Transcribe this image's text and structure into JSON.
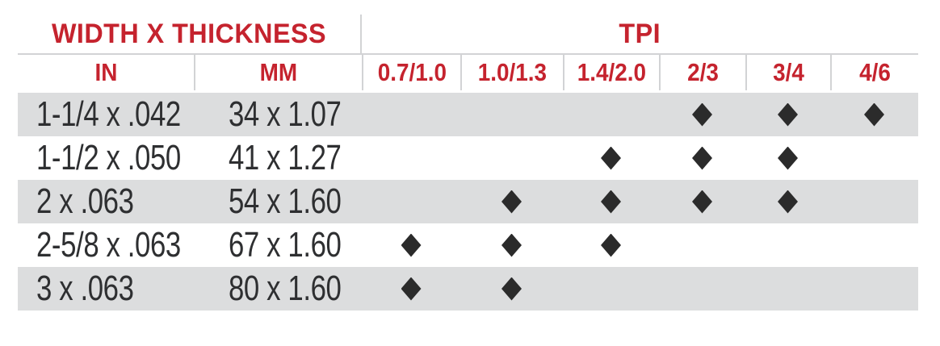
{
  "colors": {
    "header_red": "#C5232E",
    "row_stripe": "#DCDDDE",
    "grid_line": "#D2D3D5",
    "marker": "#2B2B2B",
    "data_text": "#2E2F31",
    "background": "#FFFFFF"
  },
  "chart_data": {
    "type": "table",
    "title": "",
    "marker_glyph": "♦",
    "column_groups": [
      {
        "label": "WIDTH X THICKNESS",
        "span": [
          "IN",
          "MM"
        ]
      },
      {
        "label": "TPI",
        "span": [
          "0.7/1.0",
          "1.0/1.3",
          "1.4/2.0",
          "2/3",
          "3/4",
          "4/6"
        ]
      }
    ],
    "columns": [
      "IN",
      "MM",
      "0.7/1.0",
      "1.0/1.3",
      "1.4/2.0",
      "2/3",
      "3/4",
      "4/6"
    ],
    "rows": [
      [
        "1-1/4 x .042",
        "34 x 1.07",
        "",
        "",
        "",
        "♦",
        "♦",
        "♦"
      ],
      [
        "1-1/2 x .050",
        "41 x 1.27",
        "",
        "",
        "♦",
        "♦",
        "♦",
        ""
      ],
      [
        "2 x .063",
        "54 x 1.60",
        "",
        "♦",
        "♦",
        "♦",
        "♦",
        ""
      ],
      [
        "2-5/8 x .063",
        "67 x 1.60",
        "♦",
        "♦",
        "♦",
        "",
        "",
        ""
      ],
      [
        "3 x .063",
        "80 x 1.60",
        "♦",
        "♦",
        "",
        "",
        "",
        ""
      ]
    ],
    "layout": {
      "row_striping": "alternating gray/white starting gray",
      "markers_centered": true
    }
  }
}
